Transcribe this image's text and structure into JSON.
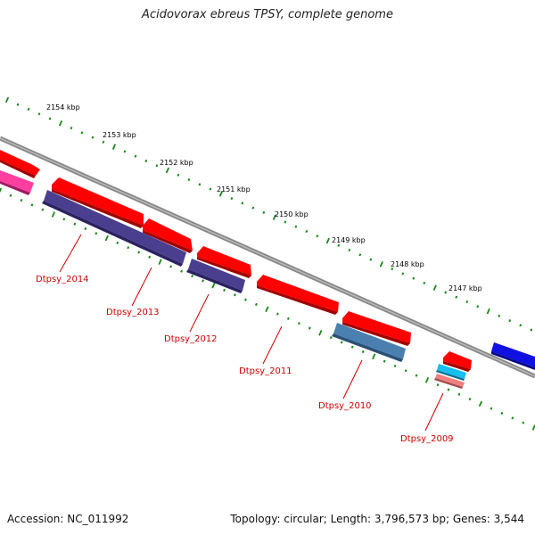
{
  "title": "Acidovorax ebreus TPSY, complete genome",
  "accession_text": "Accession: NC_011992",
  "summary_text": "Topology: circular; Length: 3,796,573 bp; Genes: 3,544",
  "kbp_labels": [
    "2154 kbp",
    "2153 kbp",
    "2152 kbp",
    "2151 kbp",
    "2150 kbp",
    "2149 kbp",
    "2148 kbp",
    "2147 kbp"
  ],
  "genes": [
    "Dtpsy_2014",
    "Dtpsy_2013",
    "Dtpsy_2012",
    "Dtpsy_2011",
    "Dtpsy_2010",
    "Dtpsy_2009"
  ],
  "colors": {
    "backbone": "#7f7f7f",
    "forward_cds": "#ff0000",
    "reverse_cds_purple": "#4a3f8f",
    "reverse_cds_steel": "#4a7fb0",
    "reverse_cds_cyan": "#19bff0",
    "reverse_cds_pink": "#ff3fa0",
    "reverse_cds_salmon": "#f08080",
    "feature_blue": "#1010e0",
    "ticks": "#1a8a1a",
    "gene_label": "#cc0000"
  }
}
